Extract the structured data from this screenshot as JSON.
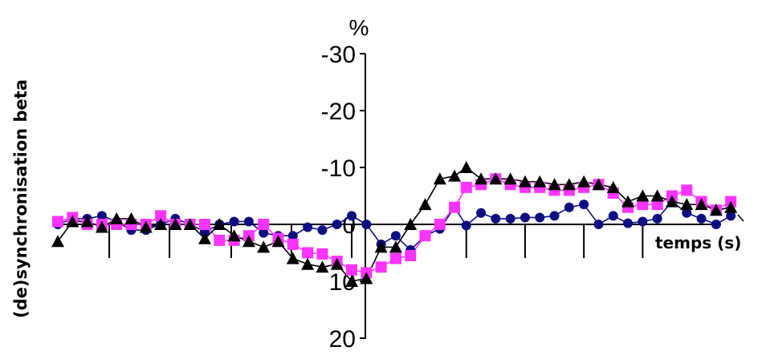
{
  "chart_data": {
    "type": "line",
    "title": "",
    "ylabel": "(de)synchronisation beta",
    "xlabel": "temps (s)",
    "y_unit": "%",
    "y_axis_inverted": true,
    "ylim": [
      -30,
      20
    ],
    "yticks": [
      -30,
      -20,
      -10,
      0,
      10,
      20
    ],
    "ytick_labels": [
      "-30",
      "-20",
      "-10",
      "0",
      "10",
      "20"
    ],
    "x_sample_index": [
      0,
      1,
      2,
      3,
      4,
      5,
      6,
      7,
      8,
      9,
      10,
      11,
      12,
      13,
      14,
      15,
      16,
      17,
      18,
      19,
      20,
      21,
      22,
      23,
      24,
      25,
      26,
      27,
      27.8,
      28.8,
      29.8,
      30.8,
      31.8,
      32.8,
      33.8,
      34.8,
      35.8,
      36.8,
      37.8,
      38.8,
      39.8,
      40.8,
      41.8,
      42.8,
      43.8,
      44.8,
      45.8
    ],
    "x_major_ticks_at_sample": [
      3.5,
      7.6,
      11.8,
      15.9,
      20.0,
      27.8,
      31.8,
      35.8,
      39.8
    ],
    "grid": false,
    "legend": "none",
    "series": [
      {
        "marker": "circle",
        "color": "#0d0d82",
        "values": [
          0,
          -1,
          -1,
          -1.5,
          -0.5,
          1,
          1,
          0,
          -1,
          0,
          1.3,
          0,
          -0.5,
          -0.5,
          1.5,
          2,
          2,
          0.5,
          1,
          0,
          -1.5,
          0,
          3.5,
          2,
          4.5,
          2,
          0.8,
          -3,
          0.2,
          -2,
          -1,
          -1,
          -1.2,
          -1.2,
          -1.5,
          -3,
          -3.5,
          0,
          -1.5,
          -0.2,
          -0.5,
          -1,
          -4,
          -2,
          -1,
          0,
          -1.5
        ]
      },
      {
        "marker": "square",
        "color": "#ff33ff",
        "values": [
          -0.5,
          -1.2,
          0,
          0,
          0,
          0,
          0,
          -1.5,
          0,
          0,
          0,
          2.8,
          2.8,
          2,
          0,
          2.5,
          3.5,
          5,
          5.2,
          6.5,
          8,
          8.5,
          7.5,
          6,
          5.5,
          2,
          0,
          -3,
          -6.5,
          -7,
          -8,
          -7,
          -6.5,
          -6.5,
          -6,
          -6,
          -6.5,
          -7,
          -5.5,
          -3,
          -3.5,
          -3.5,
          -5,
          -6,
          -4,
          -2.5,
          -4
        ]
      },
      {
        "marker": "triangle",
        "color": "#000000",
        "values": [
          3,
          -0.5,
          -0.5,
          0.5,
          -1,
          -1,
          0.5,
          0,
          0,
          0,
          2.5,
          0,
          2,
          3,
          4,
          3,
          6,
          7,
          7.5,
          7,
          10,
          9.5,
          4,
          4,
          0,
          -3.5,
          -8,
          -8.5,
          -10,
          -8,
          -8,
          -8,
          -7.5,
          -7.5,
          -7,
          -7,
          -7.5,
          -7,
          -6.5,
          -4,
          -5,
          -5,
          -4,
          -3.5,
          -3.5,
          -2.5,
          -3
        ]
      }
    ]
  }
}
